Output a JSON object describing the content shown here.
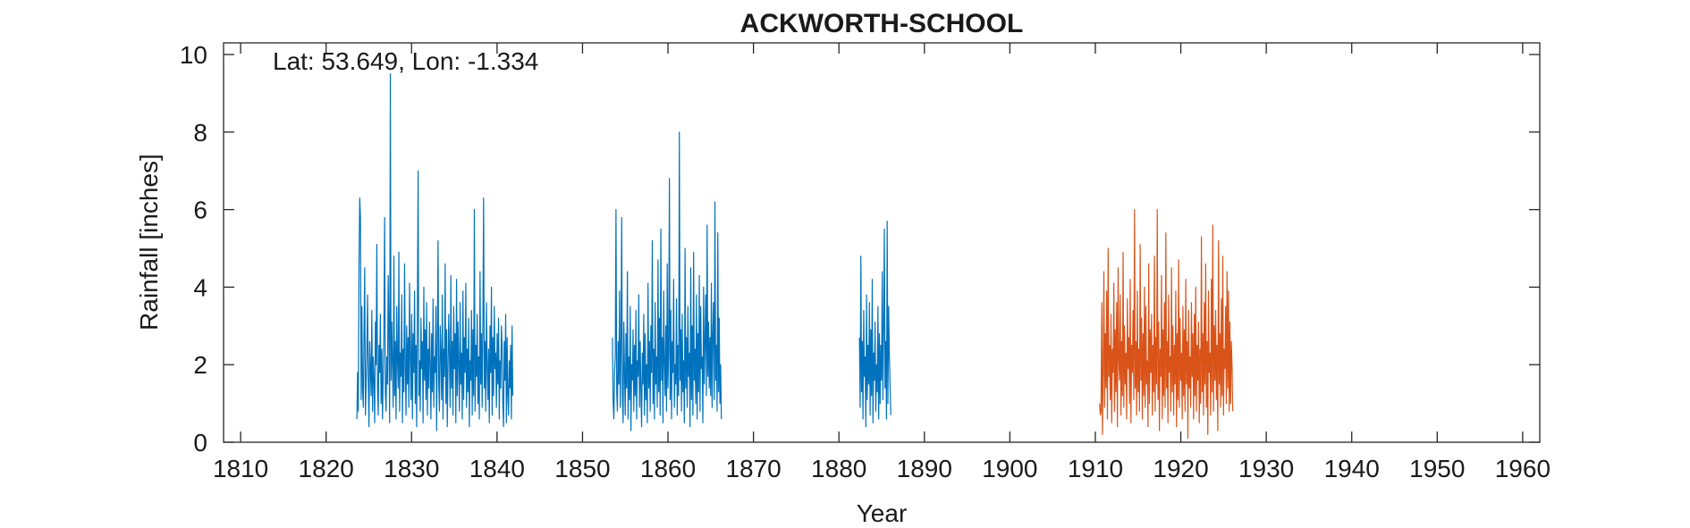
{
  "chart_data": {
    "type": "line",
    "title": "ACKWORTH-SCHOOL",
    "annotation": "Lat: 53.649, Lon: -1.334",
    "xlabel": "Year",
    "ylabel": "Rainfall [inches]",
    "xlim": [
      1808,
      1962
    ],
    "ylim": [
      0,
      10.3
    ],
    "xticks": [
      "1810",
      "1820",
      "1830",
      "1840",
      "1850",
      "1860",
      "1870",
      "1880",
      "1890",
      "1900",
      "1910",
      "1920",
      "1930",
      "1940",
      "1950",
      "1960"
    ],
    "yticks": [
      "0",
      "2",
      "4",
      "6",
      "8",
      "10"
    ],
    "grid": false,
    "series": [
      {
        "color": "#0072BD",
        "segments": [
          {
            "start": 1823.6,
            "step": 0.0833,
            "values": [
              0.6,
              1.8,
              0.8,
              4.6,
              6.3,
              5.8,
              1.1,
              3.5,
              1.4,
              0.9,
              2.7,
              4.5,
              0.7,
              1.5,
              2.3,
              3.8,
              1.6,
              0.4,
              2.6,
              1.9,
              1.2,
              3.4,
              0.8,
              2.2,
              1.6,
              0.5,
              3.1,
              2.0,
              5.1,
              1.4,
              0.7,
              2.5,
              1.8,
              3.3,
              1.0,
              2.4,
              0.6,
              1.7,
              2.9,
              5.8,
              1.3,
              0.8,
              2.2,
              1.5,
              4.3,
              2.8,
              0.5,
              9.5,
              1.6,
              3.1,
              2.0,
              0.9,
              4.8,
              1.2,
              2.6,
              0.6,
              3.5,
              2.1,
              1.4,
              4.9,
              0.8,
              2.3,
              1.7,
              3.8,
              0.5,
              2.4,
              1.3,
              4.6,
              2.0,
              0.7,
              3.0,
              1.5,
              2.7,
              0.9,
              4.1,
              2.2,
              1.1,
              3.3,
              0.6,
              2.8,
              1.8,
              3.9,
              1.0,
              2.5,
              0.4,
              3.4,
              7.0,
              1.2,
              2.1,
              0.8,
              3.2,
              1.9,
              2.6,
              0.5,
              4.0,
              1.6,
              2.9,
              1.1,
              3.6,
              0.7,
              2.4,
              1.4,
              3.1,
              2.0,
              0.6,
              2.8,
              1.3,
              3.7,
              0.9,
              2.2,
              1.8,
              3.5,
              0.3,
              2.6,
              5.2,
              1.5,
              0.8,
              3.0,
              2.3,
              1.1,
              3.8,
              0.6,
              2.4,
              1.7,
              4.6,
              1.0,
              2.9,
              0.4,
              1.9,
              3.3,
              2.2,
              0.9,
              4.3,
              1.4,
              2.6,
              0.7,
              3.5,
              1.9,
              2.8,
              0.5,
              4.2,
              1.2,
              3.1,
              2.0,
              0.8,
              3.6,
              1.5,
              2.3,
              0.6,
              3.9,
              1.1,
              2.7,
              1.8,
              4.1,
              0.9,
              2.4,
              1.3,
              3.2,
              0.4,
              2.1,
              1.6,
              3.4,
              0.7,
              2.9,
              1.2,
              6.0,
              0.8,
              2.5,
              1.7,
              3.3,
              1.0,
              2.2,
              0.6,
              4.4,
              1.5,
              2.8,
              0.9,
              3.1,
              6.3,
              1.4,
              2.6,
              0.8,
              3.6,
              2.0,
              1.1,
              2.4,
              0.5,
              3.0,
              1.8,
              4.0,
              0.7,
              2.7,
              1.2,
              3.5,
              1.9,
              2.3,
              0.9,
              2.8,
              1.5,
              3.2,
              0.6,
              2.1,
              1.4,
              3.0,
              2.5,
              1.0,
              0.4,
              2.6,
              1.6,
              3.3,
              0.5
            ],
            "after": [
              2.7,
              1.2,
              0.7,
              2.1,
              1.4,
              2.5,
              0.6,
              3.0,
              1.2
            ]
          },
          {
            "start": 1853.5,
            "step": 0.0833,
            "values": [
              2.7,
              1.0,
              0.6,
              1.8,
              2.2,
              6.0,
              1.3,
              0.8,
              2.6,
              1.5,
              3.9,
              0.9,
              2.4,
              5.8,
              1.2,
              0.5,
              3.1,
              1.8,
              0.7,
              2.8,
              1.4,
              4.4,
              0.6,
              2.2,
              1.1,
              3.5,
              0.3,
              2.0,
              1.6,
              2.9,
              0.8,
              2.5,
              1.2,
              3.4,
              0.6,
              2.1,
              1.7,
              3.8,
              0.9,
              2.6,
              1.3,
              0.4,
              2.3,
              1.5,
              3.3,
              0.7,
              2.8,
              1.1,
              2.0,
              0.5,
              4.1,
              1.4,
              2.6,
              0.8,
              3.0,
              1.8,
              5.2,
              1.0,
              2.4,
              0.6,
              3.6,
              1.5,
              2.2,
              0.9,
              4.7,
              1.3,
              3.2,
              0.7,
              5.5,
              1.6,
              2.7,
              0.5,
              3.9,
              2.1,
              1.2,
              3.0,
              0.8,
              4.6,
              1.4,
              2.3,
              6.8,
              1.1,
              3.4,
              0.6,
              2.6,
              1.8,
              4.2,
              0.9,
              2.0,
              1.5,
              3.7,
              0.7,
              2.5,
              1.2,
              8.0,
              1.6,
              2.9,
              0.8,
              3.3,
              1.3,
              2.1,
              0.5,
              5.0,
              1.4,
              2.7,
              0.9,
              3.5,
              1.7,
              2.3,
              0.4,
              4.5,
              1.1,
              3.0,
              0.7,
              4.9,
              1.6,
              2.4,
              1.0,
              3.8,
              0.6,
              2.8,
              1.3,
              4.3,
              0.8,
              3.5,
              1.9,
              2.2,
              0.5,
              4.0,
              1.5,
              2.6,
              3.8,
              1.2,
              5.6,
              1.7,
              3.1,
              1.4,
              2.7
            ],
            "after": [
              1.2,
              4.1,
              0.9,
              2.8,
              3.6,
              1.1,
              6.2,
              1.6,
              2.5,
              0.8,
              5.4,
              1.3,
              3.2,
              1.0,
              2.0,
              0.6
            ]
          },
          {
            "start": 1882.4,
            "step": 0.0833,
            "values": [
              2.7,
              0.9,
              4.8,
              1.3,
              2.6,
              0.6,
              3.4,
              1.7,
              2.2,
              0.4,
              3.8,
              1.1,
              2.5,
              1.5,
              3.6,
              0.7,
              2.9,
              1.2,
              4.2,
              0.5,
              2.3,
              1.6,
              3.1,
              0.8,
              2.0,
              1.3,
              3.5,
              0.6,
              2.8,
              1.0,
              2.5,
              1.6,
              4.4,
              1.1,
              3.0,
              5.5,
              1.4,
              2.6,
              0.6,
              5.7,
              1.0,
              3.5,
              2.3,
              1.5,
              0.7
            ]
          }
        ]
      },
      {
        "color": "#D95319",
        "segments": [
          {
            "start": 1910.5,
            "step": 0.0833,
            "values": [
              1.0,
              0.7,
              0.8,
              3.6,
              0.2,
              1.9,
              4.4,
              0.9,
              2.8,
              1.4,
              3.9,
              0.6,
              5.0,
              1.7,
              2.5,
              1.1,
              3.3,
              0.5,
              2.4,
              1.8,
              4.1,
              0.8,
              2.9,
              1.3,
              3.6,
              0.4,
              4.5,
              2.1,
              1.6,
              3.8,
              0.7,
              2.6,
              1.2,
              4.9,
              0.9,
              3.0,
              1.5,
              2.3,
              0.6,
              3.7,
              1.9,
              2.7,
              1.0,
              4.2,
              0.5,
              2.5,
              1.8,
              3.4,
              1.1,
              6.0,
              1.4,
              2.6,
              0.7,
              3.9,
              1.3,
              2.4,
              0.8,
              5.1,
              1.6,
              3.2,
              0.6,
              2.8,
              1.2,
              4.0,
              0.9,
              3.5,
              1.5,
              2.1,
              0.4,
              4.6,
              1.0,
              2.9,
              1.8,
              3.3,
              0.7,
              2.5,
              1.3,
              4.8,
              0.8,
              2.7,
              1.5,
              6.0,
              1.1,
              3.1,
              0.3,
              2.4,
              1.7,
              4.3,
              0.6,
              2.9,
              1.2,
              3.6,
              0.9,
              5.4,
              1.4,
              2.6,
              0.5,
              3.8,
              1.8,
              2.2,
              0.8,
              4.5,
              1.3,
              3.0,
              0.7,
              2.5,
              1.5,
              3.9,
              0.4,
              2.8,
              1.1,
              4.7,
              0.9,
              3.2,
              1.6,
              2.3,
              0.6,
              3.5,
              1.2,
              2.9,
              0.8,
              4.2,
              1.5,
              2.6,
              0.1,
              3.4,
              1.4,
              2.2,
              0.9,
              3.6,
              1.7,
              2.8,
              0.6,
              3.3,
              1.2,
              4.0,
              0.8,
              2.5,
              1.6,
              3.1,
              0.5,
              2.4,
              1.0,
              5.3,
              1.3,
              2.8,
              0.7,
              3.6,
              1.5,
              4.6,
              0.9,
              2.6,
              0.2,
              3.9,
              1.8,
              2.3,
              0.7,
              4.2,
              1.3,
              5.6,
              0.8,
              3.0,
              1.6,
              3.4,
              1.1,
              2.5,
              0.3,
              5.2,
              1.5,
              2.8,
              0.9,
              3.7,
              1.2,
              4.8,
              0.7,
              2.4,
              1.9,
              3.5,
              1.0,
              4.4,
              1.4,
              3.9,
              0.8,
              3.1,
              1.0,
              2.6
            ],
            "after": [
              2.0,
              0.8
            ]
          }
        ]
      }
    ]
  }
}
